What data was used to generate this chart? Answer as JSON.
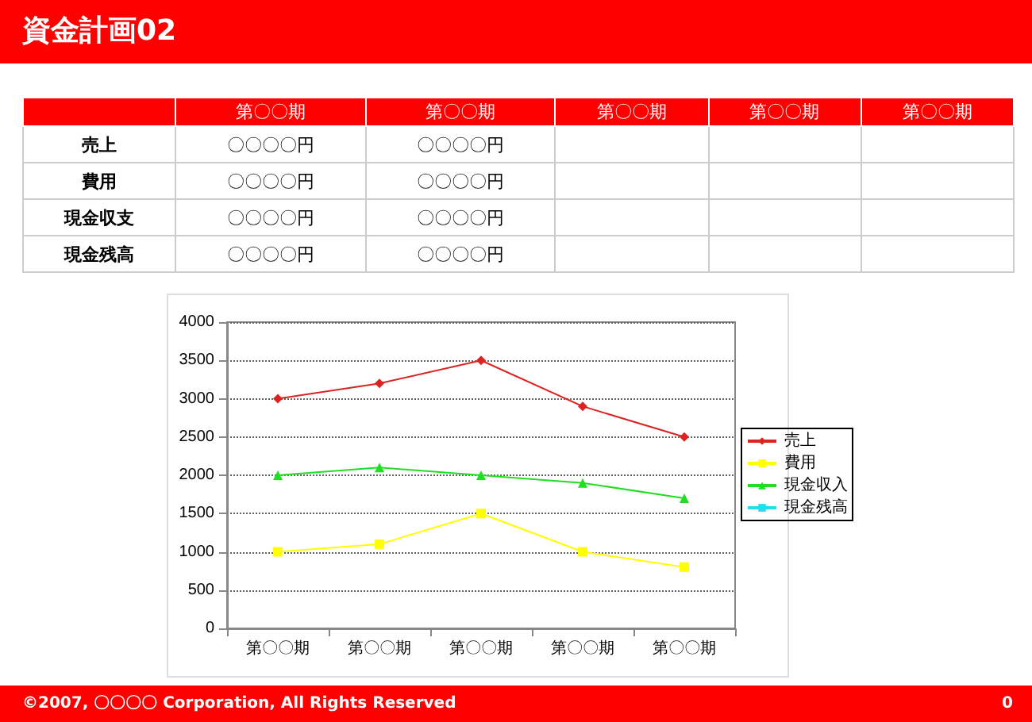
{
  "chart_data": [
    {
      "type": "other",
      "title": "資金計画02",
      "categories": [
        "第〇〇期",
        "第〇〇期",
        "第〇〇期",
        "第〇〇期",
        "第〇〇期"
      ],
      "y_categories": [
        "売上",
        "費用",
        "現金収支",
        "現金残高"
      ],
      "cell_labels": [
        [
          "〇〇〇〇円",
          "〇〇〇〇円",
          null,
          null,
          null
        ],
        [
          "〇〇〇〇円",
          "〇〇〇〇円",
          null,
          null,
          null
        ],
        [
          "〇〇〇〇円",
          "〇〇〇〇円",
          null,
          null,
          null
        ],
        [
          "〇〇〇〇円",
          "〇〇〇〇円",
          null,
          null,
          null
        ]
      ],
      "annotations": [
        "©2007, 〇〇〇〇 Corporation, All Rights Reserved",
        "0"
      ]
    },
    {
      "type": "line",
      "categories": [
        "第〇〇期",
        "第〇〇期",
        "第〇〇期",
        "第〇〇期",
        "第〇〇期"
      ],
      "series": [
        {
          "name": "売上",
          "color": "#dd2222",
          "marker": "diamond",
          "values": [
            3000,
            3200,
            3500,
            2900,
            2500
          ]
        },
        {
          "name": "費用",
          "color": "#ffff00",
          "marker": "square",
          "values": [
            1000,
            1100,
            1500,
            1000,
            800
          ]
        },
        {
          "name": "現金収入",
          "color": "#22dd22",
          "marker": "triangle",
          "values": [
            2000,
            2100,
            2000,
            1900,
            1700
          ]
        },
        {
          "name": "現金残高",
          "color": "#22ddee",
          "marker": "square",
          "values": [
            null,
            null,
            null,
            null,
            null
          ]
        }
      ],
      "ylim": [
        0,
        4000
      ],
      "yticks": [
        0,
        500,
        1000,
        1500,
        2000,
        2500,
        3000,
        3500,
        4000
      ],
      "grid": "y",
      "legend": "right",
      "line_style": "solid"
    }
  ]
}
